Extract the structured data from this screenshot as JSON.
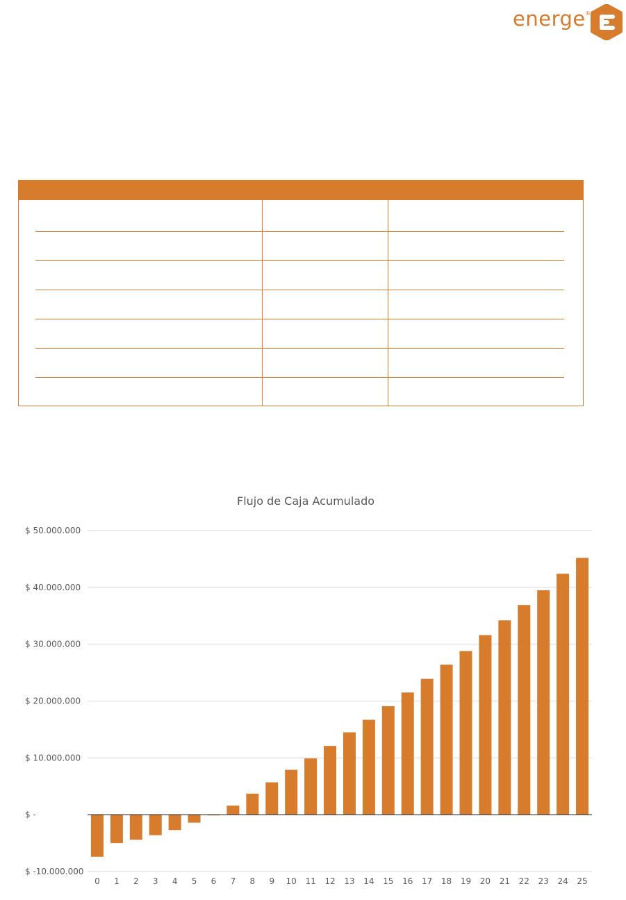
{
  "logo": {
    "text": "energe",
    "mark": "®"
  },
  "table": {
    "rows": [
      [
        "",
        "",
        ""
      ],
      [
        "",
        "",
        ""
      ],
      [
        "",
        "",
        ""
      ],
      [
        "",
        "",
        ""
      ],
      [
        "",
        "",
        ""
      ],
      [
        "",
        "",
        ""
      ],
      [
        "",
        "",
        ""
      ]
    ]
  },
  "colors": {
    "accent": "#d77b2c",
    "grid": "#d9d9d9",
    "axis_text": "#595959"
  },
  "chart_data": {
    "type": "bar",
    "title": "Flujo de Caja Acumulado",
    "xlabel": "",
    "ylabel": "",
    "ylim": [
      -10000000,
      50000000
    ],
    "y_ticks": [
      -10000000,
      0,
      10000000,
      20000000,
      30000000,
      40000000,
      50000000
    ],
    "y_tick_labels": [
      "$ -10.000.000",
      "$ -",
      "$ 10.000.000",
      "$ 20.000.000",
      "$ 30.000.000",
      "$ 40.000.000",
      "$ 50.000.000"
    ],
    "categories": [
      "0",
      "1",
      "2",
      "3",
      "4",
      "5",
      "6",
      "7",
      "8",
      "9",
      "10",
      "11",
      "12",
      "13",
      "14",
      "15",
      "16",
      "17",
      "18",
      "19",
      "20",
      "21",
      "22",
      "23",
      "24",
      "25"
    ],
    "values": [
      -7400000,
      -5000000,
      -4400000,
      -3600000,
      -2700000,
      -1400000,
      -100000,
      1600000,
      3700000,
      5700000,
      7900000,
      9900000,
      12100000,
      14500000,
      16700000,
      19100000,
      21500000,
      23900000,
      26400000,
      28800000,
      31600000,
      34200000,
      36900000,
      39500000,
      42400000,
      45200000
    ],
    "grid": true,
    "legend": "none"
  }
}
